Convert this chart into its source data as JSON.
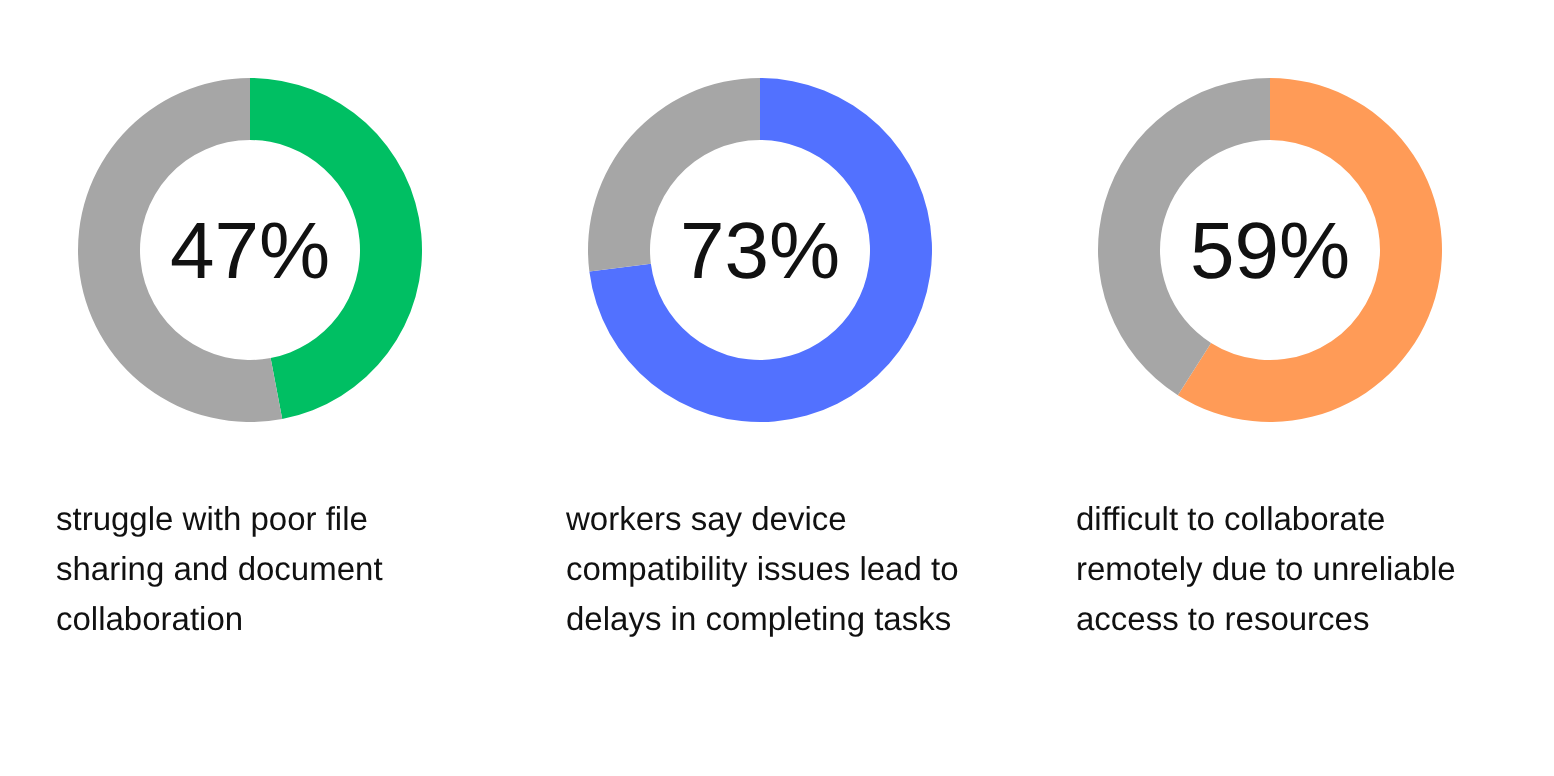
{
  "chart_data": [
    {
      "type": "donut",
      "categories": [
        null,
        null
      ],
      "values": [
        47,
        53
      ],
      "colors": [
        "#00bf63",
        "#a6a6a6"
      ],
      "value_labels": [
        "47%",
        null
      ],
      "annotations": [
        "struggle with poor file sharing and document collaboration"
      ]
    },
    {
      "type": "donut",
      "categories": [
        null,
        null
      ],
      "values": [
        73,
        27
      ],
      "colors": [
        "#5271ff",
        "#a6a6a6"
      ],
      "value_labels": [
        "73%",
        null
      ],
      "annotations": [
        "workers say device compatibility issues lead to delays in completing tasks"
      ]
    },
    {
      "type": "donut",
      "categories": [
        null,
        null
      ],
      "values": [
        59,
        41
      ],
      "colors": [
        "#ff9b57",
        "#a6a6a6"
      ],
      "value_labels": [
        "59%",
        null
      ],
      "annotations": [
        "difficult to collaborate remotely due to unreliable access to resources"
      ]
    }
  ]
}
